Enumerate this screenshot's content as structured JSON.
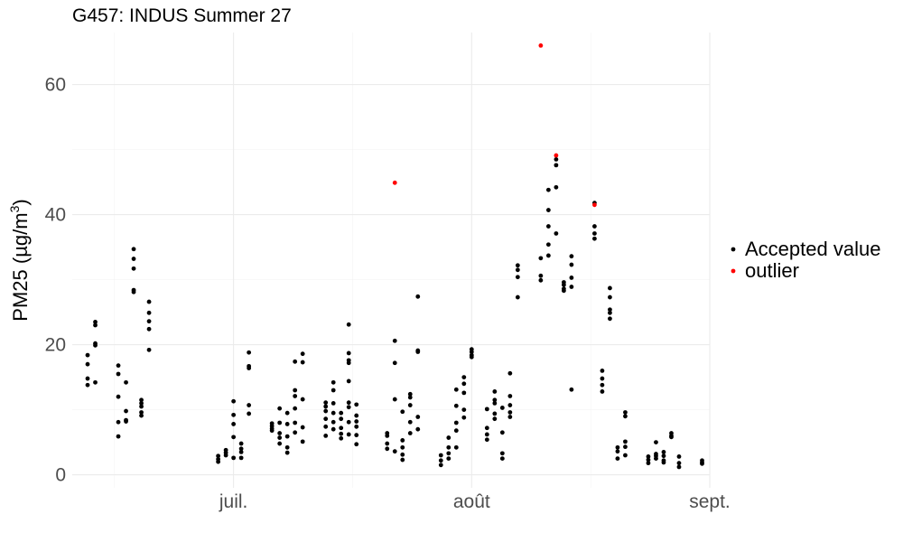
{
  "chart_data": {
    "type": "scatter",
    "title": "G457: INDUS Summer 27",
    "xlabel": "",
    "ylabel": "PM25 (µg/m³)",
    "ylabel_parts": {
      "main": "PM25 (",
      "mu": "µ",
      "unit": "g/m",
      "sup": "3",
      "close": ")"
    },
    "x_type": "date",
    "xlim": [
      "2027-06-10",
      "2027-09-01"
    ],
    "ylim": [
      -2,
      68
    ],
    "x_ticks": [
      {
        "date": "2027-07-01",
        "label": "juil."
      },
      {
        "date": "2027-08-01",
        "label": "août"
      },
      {
        "date": "2027-09-01",
        "label": "sept."
      }
    ],
    "y_ticks": [
      {
        "value": 0,
        "label": "0"
      },
      {
        "value": 20,
        "label": "20"
      },
      {
        "value": 40,
        "label": "40"
      },
      {
        "value": 60,
        "label": "60"
      }
    ],
    "grid": true,
    "legend_position": "right",
    "series": [
      {
        "name": "Accepted value",
        "color": "#000000",
        "points": [
          [
            "2027-06-12",
            18.4
          ],
          [
            "2027-06-12",
            17.0
          ],
          [
            "2027-06-12",
            14.8
          ],
          [
            "2027-06-12",
            13.8
          ],
          [
            "2027-06-13",
            23.5
          ],
          [
            "2027-06-13",
            23.0
          ],
          [
            "2027-06-13",
            20.2
          ],
          [
            "2027-06-13",
            19.9
          ],
          [
            "2027-06-13",
            14.2
          ],
          [
            "2027-06-16",
            16.8
          ],
          [
            "2027-06-16",
            15.5
          ],
          [
            "2027-06-16",
            12.0
          ],
          [
            "2027-06-16",
            8.1
          ],
          [
            "2027-06-16",
            5.9
          ],
          [
            "2027-06-17",
            14.2
          ],
          [
            "2027-06-17",
            9.8
          ],
          [
            "2027-06-17",
            8.4
          ],
          [
            "2027-06-17",
            8.2
          ],
          [
            "2027-06-18",
            34.7
          ],
          [
            "2027-06-18",
            33.2
          ],
          [
            "2027-06-18",
            31.7
          ],
          [
            "2027-06-18",
            28.4
          ],
          [
            "2027-06-18",
            28.1
          ],
          [
            "2027-06-19",
            11.5
          ],
          [
            "2027-06-19",
            11.0
          ],
          [
            "2027-06-19",
            10.5
          ],
          [
            "2027-06-19",
            9.6
          ],
          [
            "2027-06-19",
            9.1
          ],
          [
            "2027-06-20",
            26.6
          ],
          [
            "2027-06-20",
            24.9
          ],
          [
            "2027-06-20",
            23.6
          ],
          [
            "2027-06-20",
            22.4
          ],
          [
            "2027-06-20",
            19.2
          ],
          [
            "2027-06-29",
            2.9
          ],
          [
            "2027-06-29",
            2.4
          ],
          [
            "2027-06-29",
            2.0
          ],
          [
            "2027-06-30",
            3.8
          ],
          [
            "2027-06-30",
            3.4
          ],
          [
            "2027-06-30",
            3.0
          ],
          [
            "2027-07-01",
            11.3
          ],
          [
            "2027-07-01",
            9.2
          ],
          [
            "2027-07-01",
            7.8
          ],
          [
            "2027-07-01",
            5.8
          ],
          [
            "2027-07-01",
            2.6
          ],
          [
            "2027-07-02",
            4.8
          ],
          [
            "2027-07-02",
            4.0
          ],
          [
            "2027-07-02",
            3.5
          ],
          [
            "2027-07-02",
            2.6
          ],
          [
            "2027-07-03",
            18.8
          ],
          [
            "2027-07-03",
            16.7
          ],
          [
            "2027-07-03",
            16.4
          ],
          [
            "2027-07-03",
            10.7
          ],
          [
            "2027-07-03",
            9.4
          ],
          [
            "2027-07-06",
            7.9
          ],
          [
            "2027-07-06",
            7.5
          ],
          [
            "2027-07-06",
            7.1
          ],
          [
            "2027-07-06",
            6.8
          ],
          [
            "2027-07-07",
            10.2
          ],
          [
            "2027-07-07",
            8.0
          ],
          [
            "2027-07-07",
            6.4
          ],
          [
            "2027-07-07",
            5.7
          ],
          [
            "2027-07-07",
            4.8
          ],
          [
            "2027-07-08",
            9.5
          ],
          [
            "2027-07-08",
            7.8
          ],
          [
            "2027-07-08",
            5.9
          ],
          [
            "2027-07-08",
            4.2
          ],
          [
            "2027-07-08",
            3.4
          ],
          [
            "2027-07-09",
            17.4
          ],
          [
            "2027-07-09",
            13.0
          ],
          [
            "2027-07-09",
            12.1
          ],
          [
            "2027-07-09",
            10.2
          ],
          [
            "2027-07-09",
            8.0
          ],
          [
            "2027-07-09",
            6.5
          ],
          [
            "2027-07-10",
            18.6
          ],
          [
            "2027-07-10",
            17.3
          ],
          [
            "2027-07-10",
            11.6
          ],
          [
            "2027-07-10",
            7.3
          ],
          [
            "2027-07-10",
            5.1
          ],
          [
            "2027-07-13",
            11.1
          ],
          [
            "2027-07-13",
            10.5
          ],
          [
            "2027-07-13",
            9.8
          ],
          [
            "2027-07-13",
            8.6
          ],
          [
            "2027-07-13",
            7.4
          ],
          [
            "2027-07-13",
            6.0
          ],
          [
            "2027-07-14",
            14.2
          ],
          [
            "2027-07-14",
            13.0
          ],
          [
            "2027-07-14",
            11.0
          ],
          [
            "2027-07-14",
            9.5
          ],
          [
            "2027-07-14",
            8.1
          ],
          [
            "2027-07-14",
            7.0
          ],
          [
            "2027-07-15",
            9.5
          ],
          [
            "2027-07-15",
            8.6
          ],
          [
            "2027-07-15",
            7.2
          ],
          [
            "2027-07-15",
            6.3
          ],
          [
            "2027-07-15",
            5.6
          ],
          [
            "2027-07-16",
            23.1
          ],
          [
            "2027-07-16",
            18.7
          ],
          [
            "2027-07-16",
            17.6
          ],
          [
            "2027-07-16",
            17.2
          ],
          [
            "2027-07-16",
            14.4
          ],
          [
            "2027-07-16",
            11.1
          ],
          [
            "2027-07-16",
            10.4
          ],
          [
            "2027-07-16",
            8.1
          ],
          [
            "2027-07-16",
            6.2
          ],
          [
            "2027-07-17",
            10.8
          ],
          [
            "2027-07-17",
            9.1
          ],
          [
            "2027-07-17",
            8.2
          ],
          [
            "2027-07-17",
            7.4
          ],
          [
            "2027-07-17",
            6.1
          ],
          [
            "2027-07-17",
            4.7
          ],
          [
            "2027-07-21",
            6.4
          ],
          [
            "2027-07-21",
            6.0
          ],
          [
            "2027-07-21",
            4.8
          ],
          [
            "2027-07-21",
            4.0
          ],
          [
            "2027-07-22",
            20.6
          ],
          [
            "2027-07-22",
            17.2
          ],
          [
            "2027-07-22",
            11.6
          ],
          [
            "2027-07-22",
            3.6
          ],
          [
            "2027-07-23",
            9.7
          ],
          [
            "2027-07-23",
            5.3
          ],
          [
            "2027-07-23",
            4.2
          ],
          [
            "2027-07-23",
            3.1
          ],
          [
            "2027-07-23",
            2.3
          ],
          [
            "2027-07-24",
            12.4
          ],
          [
            "2027-07-24",
            11.9
          ],
          [
            "2027-07-24",
            10.7
          ],
          [
            "2027-07-24",
            8.1
          ],
          [
            "2027-07-24",
            6.4
          ],
          [
            "2027-07-25",
            27.4
          ],
          [
            "2027-07-25",
            19.1
          ],
          [
            "2027-07-25",
            18.9
          ],
          [
            "2027-07-25",
            8.9
          ],
          [
            "2027-07-25",
            7.0
          ],
          [
            "2027-07-28",
            3.0
          ],
          [
            "2027-07-28",
            2.2
          ],
          [
            "2027-07-28",
            1.5
          ],
          [
            "2027-07-29",
            5.7
          ],
          [
            "2027-07-29",
            4.2
          ],
          [
            "2027-07-29",
            3.3
          ],
          [
            "2027-07-29",
            2.5
          ],
          [
            "2027-07-30",
            13.1
          ],
          [
            "2027-07-30",
            10.6
          ],
          [
            "2027-07-30",
            8.0
          ],
          [
            "2027-07-30",
            6.8
          ],
          [
            "2027-07-30",
            4.2
          ],
          [
            "2027-07-31",
            15.0
          ],
          [
            "2027-07-31",
            14.0
          ],
          [
            "2027-07-31",
            12.6
          ],
          [
            "2027-07-31",
            10.0
          ],
          [
            "2027-07-31",
            8.8
          ],
          [
            "2027-08-01",
            19.3
          ],
          [
            "2027-08-01",
            18.9
          ],
          [
            "2027-08-01",
            18.4
          ],
          [
            "2027-08-01",
            18.1
          ],
          [
            "2027-08-03",
            10.1
          ],
          [
            "2027-08-03",
            7.2
          ],
          [
            "2027-08-03",
            6.2
          ],
          [
            "2027-08-03",
            5.4
          ],
          [
            "2027-08-04",
            12.8
          ],
          [
            "2027-08-04",
            11.5
          ],
          [
            "2027-08-04",
            11.0
          ],
          [
            "2027-08-04",
            9.4
          ],
          [
            "2027-08-04",
            8.6
          ],
          [
            "2027-08-05",
            10.3
          ],
          [
            "2027-08-05",
            6.5
          ],
          [
            "2027-08-05",
            3.3
          ],
          [
            "2027-08-05",
            2.5
          ],
          [
            "2027-08-06",
            15.6
          ],
          [
            "2027-08-06",
            12.1
          ],
          [
            "2027-08-06",
            10.7
          ],
          [
            "2027-08-06",
            9.6
          ],
          [
            "2027-08-06",
            8.9
          ],
          [
            "2027-08-07",
            32.2
          ],
          [
            "2027-08-07",
            31.5
          ],
          [
            "2027-08-07",
            30.4
          ],
          [
            "2027-08-07",
            27.3
          ],
          [
            "2027-08-10",
            33.3
          ],
          [
            "2027-08-10",
            30.6
          ],
          [
            "2027-08-10",
            29.9
          ],
          [
            "2027-08-11",
            43.8
          ],
          [
            "2027-08-11",
            40.7
          ],
          [
            "2027-08-11",
            38.2
          ],
          [
            "2027-08-11",
            35.4
          ],
          [
            "2027-08-11",
            33.7
          ],
          [
            "2027-08-12",
            48.5
          ],
          [
            "2027-08-12",
            47.6
          ],
          [
            "2027-08-12",
            44.2
          ],
          [
            "2027-08-12",
            37.1
          ],
          [
            "2027-08-13",
            29.6
          ],
          [
            "2027-08-13",
            29.2
          ],
          [
            "2027-08-13",
            28.6
          ],
          [
            "2027-08-13",
            28.3
          ],
          [
            "2027-08-14",
            33.6
          ],
          [
            "2027-08-14",
            32.3
          ],
          [
            "2027-08-14",
            30.3
          ],
          [
            "2027-08-14",
            28.9
          ],
          [
            "2027-08-14",
            13.1
          ],
          [
            "2027-08-17",
            41.8
          ],
          [
            "2027-08-17",
            38.2
          ],
          [
            "2027-08-17",
            37.1
          ],
          [
            "2027-08-17",
            36.3
          ],
          [
            "2027-08-18",
            16.0
          ],
          [
            "2027-08-18",
            14.8
          ],
          [
            "2027-08-18",
            13.8
          ],
          [
            "2027-08-18",
            12.8
          ],
          [
            "2027-08-19",
            28.7
          ],
          [
            "2027-08-19",
            27.3
          ],
          [
            "2027-08-19",
            25.4
          ],
          [
            "2027-08-19",
            24.9
          ],
          [
            "2027-08-19",
            24.0
          ],
          [
            "2027-08-20",
            4.2
          ],
          [
            "2027-08-20",
            3.6
          ],
          [
            "2027-08-20",
            2.5
          ],
          [
            "2027-08-21",
            9.6
          ],
          [
            "2027-08-21",
            9.0
          ],
          [
            "2027-08-21",
            5.1
          ],
          [
            "2027-08-21",
            4.3
          ],
          [
            "2027-08-21",
            3.0
          ],
          [
            "2027-08-24",
            2.8
          ],
          [
            "2027-08-24",
            2.3
          ],
          [
            "2027-08-24",
            1.8
          ],
          [
            "2027-08-25",
            5.0
          ],
          [
            "2027-08-25",
            3.2
          ],
          [
            "2027-08-25",
            2.9
          ],
          [
            "2027-08-25",
            2.5
          ],
          [
            "2027-08-26",
            3.5
          ],
          [
            "2027-08-26",
            2.9
          ],
          [
            "2027-08-26",
            2.2
          ],
          [
            "2027-08-26",
            1.9
          ],
          [
            "2027-08-27",
            6.4
          ],
          [
            "2027-08-27",
            6.0
          ],
          [
            "2027-08-27",
            5.8
          ],
          [
            "2027-08-28",
            2.8
          ],
          [
            "2027-08-28",
            1.8
          ],
          [
            "2027-08-28",
            1.2
          ],
          [
            "2027-08-31",
            2.2
          ],
          [
            "2027-08-31",
            1.9
          ],
          [
            "2027-08-31",
            1.7
          ]
        ]
      },
      {
        "name": "outlier",
        "color": "#ff0000",
        "points": [
          [
            "2027-07-22",
            44.9
          ],
          [
            "2027-08-10",
            66.0
          ],
          [
            "2027-08-12",
            49.1
          ],
          [
            "2027-08-17",
            41.5
          ]
        ]
      }
    ]
  }
}
